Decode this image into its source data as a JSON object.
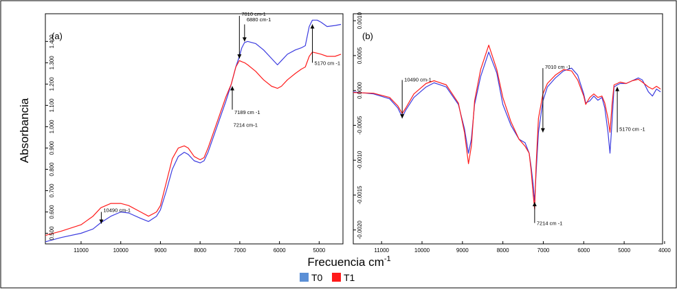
{
  "figure": {
    "ylabel": "Absorbancia",
    "xlabel": "Frecuencia cm",
    "xlabel_sup": "-1",
    "legend": [
      {
        "label": "T0",
        "color": "#5b8fd6"
      },
      {
        "label": "T1",
        "color": "#ff1a1a"
      }
    ]
  },
  "chart_data": [
    {
      "type": "line",
      "panel": "(a)",
      "xlim": [
        11900,
        4400
      ],
      "ylim": [
        0.45,
        1.53
      ],
      "xticks": [
        "11000",
        "10000",
        "9000",
        "8000",
        "7000",
        "6000",
        "5000"
      ],
      "xtick_values": [
        11000,
        10000,
        9000,
        8000,
        7000,
        6000,
        5000
      ],
      "yticks": [
        "0.500",
        "0.600",
        "0.700",
        "0.800",
        "0.900",
        "1.000",
        "1.100",
        "1.200",
        "1.300",
        "1.400"
      ],
      "ytick_values": [
        0.5,
        0.6,
        0.7,
        0.8,
        0.9,
        1.0,
        1.1,
        1.2,
        1.3,
        1.4
      ],
      "series": [
        {
          "name": "T0",
          "color": "#3a3adf",
          "x": [
            11900,
            11500,
            11000,
            10700,
            10500,
            10250,
            10000,
            9800,
            9500,
            9300,
            9100,
            9000,
            8850,
            8700,
            8550,
            8400,
            8300,
            8150,
            8000,
            7900,
            7800,
            7650,
            7500,
            7350,
            7214,
            7100,
            7010,
            6950,
            6880,
            6800,
            6600,
            6400,
            6200,
            6050,
            5950,
            5800,
            5600,
            5450,
            5350,
            5250,
            5170,
            5050,
            4950,
            4800,
            4600,
            4450
          ],
          "y": [
            0.46,
            0.48,
            0.5,
            0.52,
            0.55,
            0.58,
            0.6,
            0.595,
            0.57,
            0.555,
            0.58,
            0.61,
            0.7,
            0.8,
            0.86,
            0.88,
            0.87,
            0.84,
            0.83,
            0.84,
            0.88,
            0.96,
            1.04,
            1.12,
            1.2,
            1.28,
            1.33,
            1.37,
            1.395,
            1.4,
            1.39,
            1.36,
            1.32,
            1.29,
            1.31,
            1.34,
            1.36,
            1.37,
            1.38,
            1.47,
            1.5,
            1.5,
            1.49,
            1.47,
            1.475,
            1.48
          ]
        },
        {
          "name": "T1",
          "color": "#ff1a1a",
          "x": [
            11900,
            11500,
            11000,
            10700,
            10500,
            10250,
            10000,
            9800,
            9500,
            9300,
            9100,
            9000,
            8850,
            8700,
            8550,
            8400,
            8300,
            8150,
            8000,
            7900,
            7800,
            7650,
            7500,
            7350,
            7214,
            7100,
            7010,
            6950,
            6880,
            6800,
            6600,
            6400,
            6200,
            6050,
            5950,
            5800,
            5600,
            5450,
            5350,
            5250,
            5170,
            5050,
            4950,
            4800,
            4600,
            4450
          ],
          "y": [
            0.49,
            0.51,
            0.54,
            0.58,
            0.62,
            0.64,
            0.64,
            0.63,
            0.6,
            0.58,
            0.6,
            0.63,
            0.74,
            0.85,
            0.9,
            0.91,
            0.9,
            0.86,
            0.845,
            0.855,
            0.9,
            0.98,
            1.06,
            1.14,
            1.2,
            1.28,
            1.31,
            1.305,
            1.3,
            1.29,
            1.26,
            1.22,
            1.19,
            1.18,
            1.19,
            1.22,
            1.25,
            1.27,
            1.28,
            1.33,
            1.35,
            1.345,
            1.34,
            1.33,
            1.33,
            1.34
          ]
        }
      ],
      "annotations": [
        {
          "text": "10490 cm-1",
          "x": 10490,
          "y": 0.6
        },
        {
          "text": "7010 cm-1",
          "x": 7010,
          "y": 1.52
        },
        {
          "text": "6880 cm-1",
          "x": 6880,
          "y": 1.495
        },
        {
          "text": "7189 cm -1",
          "x": 7189,
          "y": 1.06
        },
        {
          "text": "7214 cm-1",
          "x": 7214,
          "y": 1.0
        },
        {
          "text": "5170 cm -1",
          "x": 5170,
          "y": 1.29
        }
      ]
    },
    {
      "type": "line",
      "panel": "(b)",
      "xlim": [
        11700,
        4050
      ],
      "ylim": [
        -0.0022,
        0.0011
      ],
      "xticks": [
        "11000",
        "10000",
        "9000",
        "8000",
        "7000",
        "6000",
        "5000",
        "4000"
      ],
      "xtick_values": [
        11000,
        10000,
        9000,
        8000,
        7000,
        6000,
        5000,
        4000
      ],
      "yticks": [
        "-0.0020",
        "-0.0015",
        "-0.0010",
        "-0.0005",
        "0.0000",
        "0.0005",
        "0.0010"
      ],
      "ytick_values": [
        -0.002,
        -0.0015,
        -0.001,
        -0.0005,
        0.0,
        0.0005,
        0.001
      ],
      "series": [
        {
          "name": "T0",
          "color": "#3a3adf",
          "x": [
            11700,
            11200,
            10800,
            10600,
            10490,
            10400,
            10200,
            9900,
            9700,
            9400,
            9100,
            8950,
            8850,
            8780,
            8700,
            8550,
            8350,
            8150,
            8000,
            7800,
            7600,
            7450,
            7350,
            7300,
            7250,
            7214,
            7180,
            7120,
            7010,
            6900,
            6700,
            6500,
            6300,
            6150,
            6000,
            5950,
            5850,
            5750,
            5650,
            5550,
            5480,
            5400,
            5350,
            5300,
            5250,
            5170,
            5100,
            4950,
            4800,
            4650,
            4550,
            4400,
            4300,
            4200,
            4100
          ],
          "y": [
            -2e-05,
            -5e-05,
            -0.00012,
            -0.00025,
            -0.00038,
            -0.00028,
            -0.0001,
            5e-05,
            0.00011,
            5e-05,
            -0.0002,
            -0.00055,
            -0.0009,
            -0.0007,
            -0.0002,
            0.0002,
            0.00055,
            0.00025,
            -0.0002,
            -0.0005,
            -0.0007,
            -0.00075,
            -0.0009,
            -0.0011,
            -0.00135,
            -0.0016,
            -0.0012,
            -0.0006,
            -0.00015,
            5e-05,
            0.00018,
            0.00028,
            0.00032,
            0.00022,
            -5e-05,
            -0.00018,
            -0.00015,
            -8e-05,
            -0.00014,
            -0.0001,
            -0.00025,
            -0.0006,
            -0.0009,
            -0.00045,
            5e-05,
            8e-05,
            0.0001,
            0.0001,
            0.00014,
            0.00018,
            0.00015,
            -2e-05,
            -8e-05,
            2e-05,
            -2e-05
          ]
        },
        {
          "name": "T1",
          "color": "#ff1a1a",
          "x": [
            11700,
            11200,
            10800,
            10600,
            10490,
            10400,
            10200,
            9900,
            9700,
            9400,
            9100,
            8950,
            8850,
            8780,
            8700,
            8550,
            8350,
            8150,
            8000,
            7800,
            7600,
            7450,
            7350,
            7300,
            7250,
            7214,
            7180,
            7120,
            7010,
            6900,
            6700,
            6500,
            6300,
            6150,
            6000,
            5950,
            5850,
            5750,
            5650,
            5550,
            5480,
            5400,
            5350,
            5300,
            5250,
            5170,
            5100,
            4950,
            4800,
            4650,
            4550,
            4400,
            4300,
            4200,
            4100
          ],
          "y": [
            -3e-05,
            -4e-05,
            -0.0001,
            -0.00022,
            -0.00033,
            -0.00025,
            -5e-05,
            0.0001,
            0.00014,
            8e-05,
            -0.00018,
            -0.0006,
            -0.00105,
            -0.0008,
            -0.00015,
            0.0003,
            0.00065,
            0.0003,
            -0.0001,
            -0.00045,
            -0.0007,
            -0.0008,
            -0.0009,
            -0.00115,
            -0.0015,
            -0.0017,
            -0.0011,
            -0.0004,
            -5e-05,
            0.0001,
            0.00022,
            0.0003,
            0.00028,
            0.00015,
            -8e-05,
            -0.0002,
            -0.0001,
            -5e-05,
            -0.0001,
            -8e-05,
            -0.00018,
            -0.0004,
            -0.0006,
            -0.0002,
            8e-05,
            0.0001,
            0.00012,
            0.0001,
            0.00014,
            0.00016,
            0.00012,
            5e-05,
            2e-05,
            6e-05,
            2e-05
          ]
        }
      ],
      "annotations": [
        {
          "text": "10490 cm-1",
          "x": 10490,
          "y": 0.00013
        },
        {
          "text": "7010 cm -1",
          "x": 7010,
          "y": 0.00031
        },
        {
          "text": "5170 cm -1",
          "x": 5170,
          "y": -0.00058
        },
        {
          "text": "7214 cm -1",
          "x": 7214,
          "y": -0.00193
        }
      ]
    }
  ]
}
